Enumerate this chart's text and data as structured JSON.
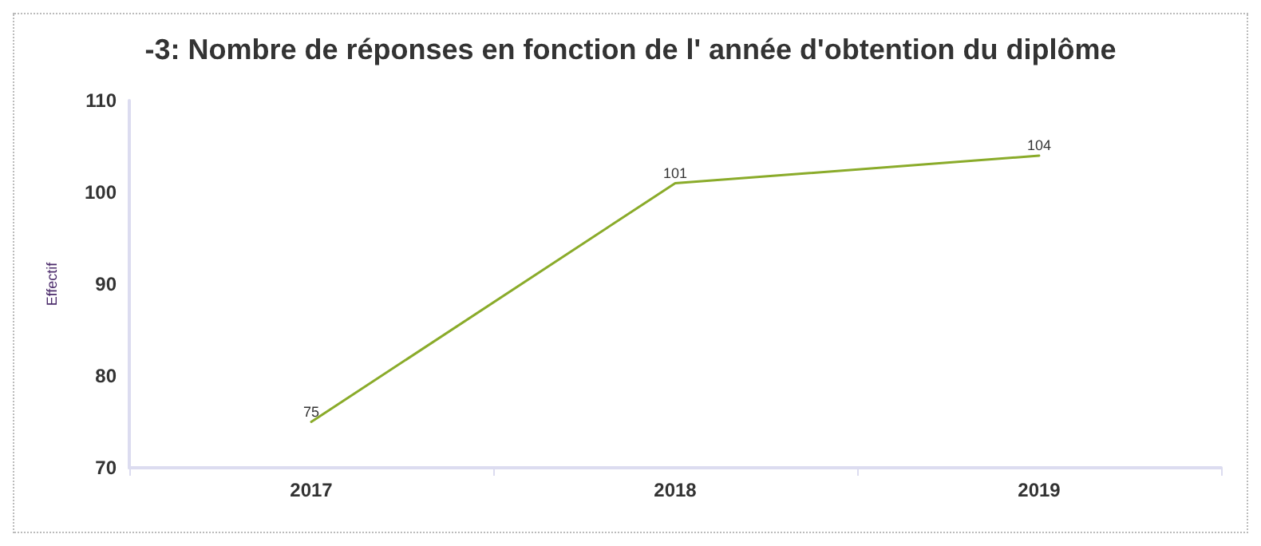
{
  "chart_data": {
    "type": "line",
    "title": "-3: Nombre de réponses en fonction de l' année d'obtention du diplôme",
    "ylabel": "Effectif",
    "categories": [
      "2017",
      "2018",
      "2019"
    ],
    "series": [
      {
        "color": "#8aab2a",
        "values": [
          75,
          101,
          104
        ]
      }
    ],
    "ylim": [
      70,
      110
    ],
    "yticks": [
      70,
      80,
      90,
      100,
      110
    ],
    "grid": false,
    "data_labels": true,
    "marker": "none",
    "line_style": "solid"
  }
}
